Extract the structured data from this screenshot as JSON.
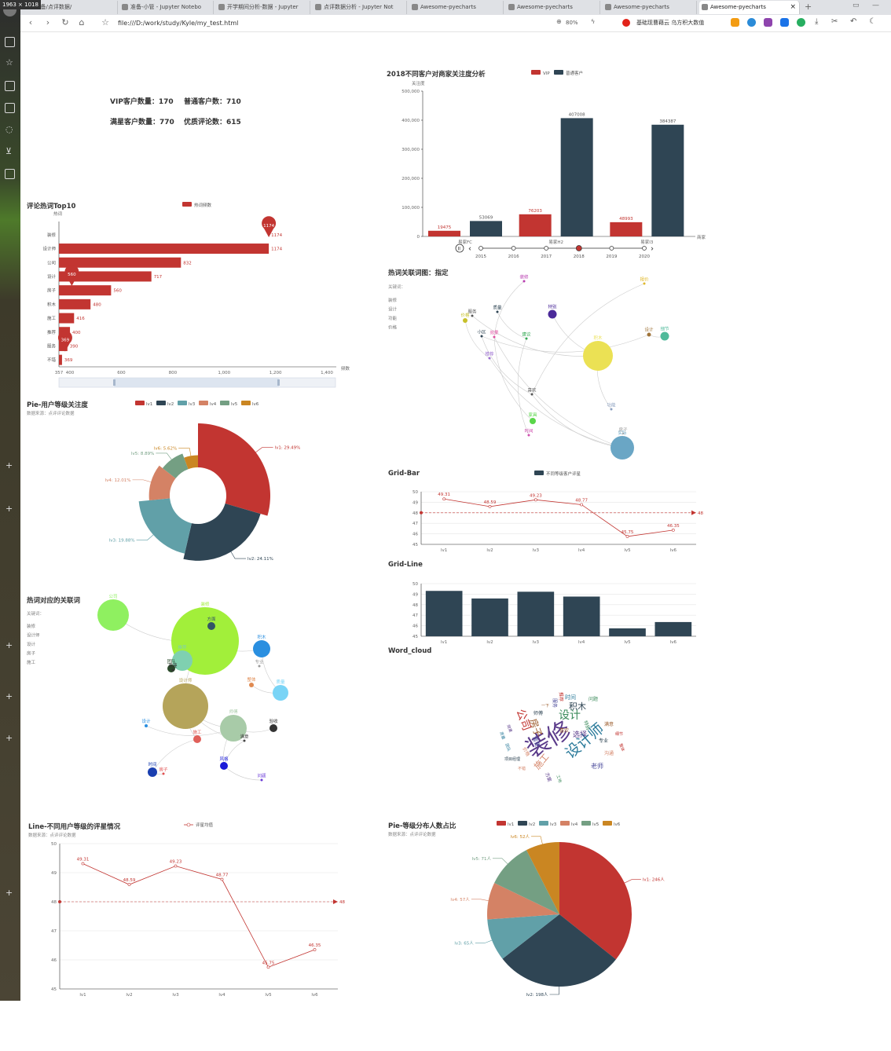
{
  "browser": {
    "size_badge": "1963 × 1018",
    "tabs": [
      {
        "label": "数据分析-准备/点评数据/"
      },
      {
        "label": "准备-小管 - Jupyter Notebo"
      },
      {
        "label": "开学期间分析-数据 - Jupyter"
      },
      {
        "label": "点评数据分析 - Jupyter Not"
      },
      {
        "label": "Awesome-pyecharts"
      },
      {
        "label": "Awesome-pyecharts"
      },
      {
        "label": "Awesome-pyecharts"
      },
      {
        "label": "Awesome-pyecharts"
      }
    ],
    "url": "file:///D:/work/study/Kyle/my_test.html",
    "zoom": "80%",
    "extension_text": "基础现曹藉云 乌方积大数值"
  },
  "kpi": {
    "vip": "VIP客户数量：170",
    "normal": "普通客户数：710",
    "satisfied": "满星客户数量：770",
    "good_reviews": "优质评论数：615"
  },
  "colors": {
    "red": "#c23531",
    "navy": "#2f4554",
    "teal": "#61a0a8",
    "orange": "#d48265",
    "green": "#749f83",
    "gold": "#ca8622"
  },
  "chart_data": [
    {
      "id": "bar2018",
      "type": "bar",
      "title": "2018不同客户对商家关注度分析",
      "ylabel": "关注度",
      "xlabel": "商家",
      "ylim": [
        0,
        500000
      ],
      "yticks": [
        "0",
        "100,000",
        "200,000",
        "300,000",
        "400,000",
        "500,000"
      ],
      "categories": [
        "易家FC",
        "易家H2",
        "易家I3"
      ],
      "series": [
        {
          "name": "VIP",
          "values": [
            19475,
            76203,
            48993
          ]
        },
        {
          "name": "普通客户",
          "values": [
            53069,
            407008,
            384387
          ]
        }
      ],
      "timeline": [
        "2015",
        "2016",
        "2017",
        "2018",
        "2019",
        "2020"
      ],
      "timeline_active": "2018"
    },
    {
      "id": "top10",
      "type": "bar",
      "orientation": "horizontal",
      "title": "评论热词Top10",
      "legend": "热词频数",
      "ylabel": "热词",
      "xlabel": "频数",
      "xlim": [
        357,
        1400
      ],
      "xticks": [
        "357",
        "400",
        "600",
        "800",
        "1,000",
        "1,200",
        "1,400"
      ],
      "categories": [
        "装修",
        "设计师",
        "公司",
        "设计",
        "房子",
        "积木",
        "施工",
        "推荐",
        "服务",
        "不错"
      ],
      "values": [
        1174,
        1174,
        832,
        717,
        560,
        480,
        416,
        400,
        390,
        369
      ],
      "markers": [
        "1174",
        "560",
        "369"
      ]
    },
    {
      "id": "pie_rose",
      "type": "pie",
      "title": "Pie-用户等级关注度",
      "subtitle": "数据来源：点评评论数据",
      "legend": [
        "lv1",
        "lv2",
        "lv3",
        "lv4",
        "lv5",
        "lv6"
      ],
      "values": [
        29.49,
        24.11,
        19.88,
        12.01,
        8.89,
        5.62
      ],
      "labels": [
        "lv1: 29.49%",
        "lv2: 24.11%",
        "lv3: 19.88%",
        "lv4: 12.01%",
        "lv5: 8.89%",
        "lv6: 5.62%"
      ]
    },
    {
      "id": "gridbar_line",
      "type": "line",
      "title": "Grid-Bar",
      "legend": "不同等级客户评星",
      "categories": [
        "lv1",
        "lv2",
        "lv3",
        "lv4",
        "lv5",
        "lv6"
      ],
      "values": [
        49.31,
        48.59,
        49.23,
        48.77,
        45.75,
        46.35
      ],
      "ylim": [
        45,
        50
      ],
      "avg_line": 48,
      "avg_label": "48"
    },
    {
      "id": "gridline_bar",
      "type": "bar",
      "title": "Grid-Line",
      "categories": [
        "lv1",
        "lv2",
        "lv3",
        "lv4",
        "lv5",
        "lv6"
      ],
      "values": [
        49.31,
        48.59,
        49.23,
        48.77,
        45.75,
        46.35
      ],
      "ylim": [
        45,
        50
      ]
    },
    {
      "id": "line_big",
      "type": "line",
      "title": "Line-不同用户等级的评星情况",
      "subtitle": "数据来源：点评评论数据",
      "legend": "评星均值",
      "categories": [
        "lv1",
        "lv2",
        "lv3",
        "lv4",
        "lv5",
        "lv6"
      ],
      "values": [
        49.31,
        48.59,
        49.23,
        48.77,
        45.75,
        46.35
      ],
      "ylim": [
        45,
        50
      ],
      "avg_line": 48,
      "avg_label": "48"
    },
    {
      "id": "pie_plain",
      "type": "pie",
      "title": "Pie-等级分布人数占比",
      "subtitle": "数据来源：点评评论数据",
      "legend": [
        "lv1",
        "lv2",
        "lv3",
        "lv4",
        "lv5",
        "lv6"
      ],
      "values": [
        246,
        198,
        65,
        57,
        71,
        52
      ],
      "labels": [
        "lv1: 246人",
        "lv2: 198人",
        "lv3: 65人",
        "lv4: 57人",
        "lv5: 71人",
        "lv6: 52人"
      ]
    }
  ],
  "graph1": {
    "title": "热词关联词图：指定",
    "subtitle": "关键词：",
    "legend": [
      "装修",
      "设计",
      "功能",
      "价格"
    ],
    "nodes": [
      "装修",
      "报价",
      "质量",
      "特别",
      "价格",
      "服务",
      "小区",
      "效果",
      "建议",
      "推荐",
      "积木",
      "设计",
      "细节",
      "喜欢",
      "功能",
      "家具",
      "时间",
      "实际",
      "房子"
    ]
  },
  "graph2": {
    "title": "热词对应的关联词",
    "subtitle": "关键词：",
    "legend": [
      "装修",
      "设计师",
      "设计",
      "房子",
      "施工"
    ],
    "nodes": [
      "公司",
      "装修",
      "方面",
      "积木",
      "推荐",
      "团队",
      "设计师",
      "整体",
      "质量",
      "师傅",
      "设计",
      "施工",
      "验收",
      "时间",
      "房子",
      "风格",
      "问题",
      "满意",
      "需要",
      "专业"
    ]
  },
  "wordcloud": {
    "title": "Word_cloud",
    "words": [
      "装修",
      "设计师",
      "公司",
      "设计",
      "房子",
      "积木",
      "施工",
      "老师",
      "选择",
      "时间",
      "推荐",
      "特别",
      "满意",
      "专业",
      "沟通",
      "服务",
      "效果",
      "质量",
      "细节",
      "工地",
      "一下",
      "项目经理",
      "不错",
      "需要",
      "方案",
      "团队",
      "整体",
      "问题",
      "喜欢",
      "师傅",
      "价格"
    ]
  }
}
